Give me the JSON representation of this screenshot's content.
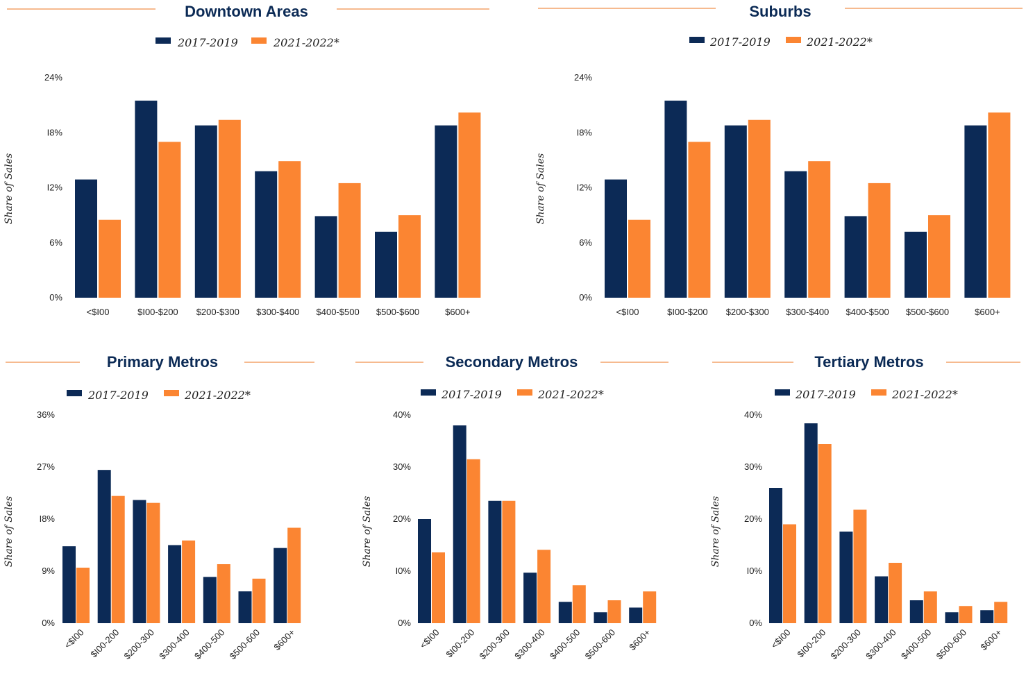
{
  "colors": {
    "series1": "#0c2a56",
    "series2": "#fb8532",
    "rule": "#f4a46a",
    "title": "#0b2a55"
  },
  "chart_data": [
    {
      "type": "bar",
      "title": "Downtown Areas",
      "ylabel": "Share of Sales",
      "categories": [
        "<$I00",
        "$I00-$200",
        "$200-$300",
        "$300-$400",
        "$400-$500",
        "$500-$600",
        "$600+"
      ],
      "series": [
        {
          "name": "2017-2019",
          "values": [
            12.9,
            21.5,
            18.8,
            13.8,
            8.9,
            7.2,
            18.8
          ]
        },
        {
          "name": "2021-2022*",
          "values": [
            8.5,
            17.0,
            19.4,
            14.9,
            12.5,
            9.0,
            20.2
          ]
        }
      ],
      "ylim": [
        0,
        24
      ],
      "yticks": [
        0,
        6,
        12,
        18,
        24
      ],
      "ytick_labels": [
        "0%",
        "6%",
        "I2%",
        "I8%",
        "24%"
      ],
      "grid": false,
      "legend": "top-center"
    },
    {
      "type": "bar",
      "title": "Suburbs",
      "ylabel": "Share of Sales",
      "categories": [
        "<$I00",
        "$I00-$200",
        "$200-$300",
        "$300-$400",
        "$400-$500",
        "$500-$600",
        "$600+"
      ],
      "series": [
        {
          "name": "2017-2019",
          "values": [
            12.9,
            21.5,
            18.8,
            13.8,
            8.9,
            7.2,
            18.8
          ]
        },
        {
          "name": "2021-2022*",
          "values": [
            8.5,
            17.0,
            19.4,
            14.9,
            12.5,
            9.0,
            20.2
          ]
        }
      ],
      "ylim": [
        0,
        24
      ],
      "yticks": [
        0,
        6,
        12,
        18,
        24
      ],
      "ytick_labels": [
        "0%",
        "6%",
        "I2%",
        "I8%",
        "24%"
      ],
      "grid": false,
      "legend": "top-center"
    },
    {
      "type": "bar",
      "title": "Primary Metros",
      "ylabel": "Share of Sales",
      "categories": [
        "<$I00",
        "$I00-200",
        "$200-300",
        "$300-400",
        "$400-500",
        "$500-600",
        "$600+"
      ],
      "series": [
        {
          "name": "2017-2019",
          "values": [
            13.3,
            26.5,
            21.3,
            13.5,
            8.0,
            5.5,
            13.0
          ]
        },
        {
          "name": "2021-2022*",
          "values": [
            9.6,
            22.0,
            20.8,
            14.3,
            10.2,
            7.7,
            16.5
          ]
        }
      ],
      "ylim": [
        0,
        36
      ],
      "yticks": [
        0,
        9,
        18,
        27,
        36
      ],
      "ytick_labels": [
        "0%",
        "9%",
        "I8%",
        "27%",
        "36%"
      ],
      "grid": false,
      "legend": "top-center"
    },
    {
      "type": "bar",
      "title": "Secondary Metros",
      "ylabel": "Share of Sales",
      "categories": [
        "<$I00",
        "$I00-200",
        "$200-300",
        "$300-400",
        "$400-500",
        "$500-600",
        "$600+"
      ],
      "series": [
        {
          "name": "2017-2019",
          "values": [
            20.0,
            38.0,
            23.5,
            9.7,
            4.1,
            2.1,
            3.0
          ]
        },
        {
          "name": "2021-2022*",
          "values": [
            13.6,
            31.5,
            23.5,
            14.1,
            7.3,
            4.4,
            6.1
          ]
        }
      ],
      "ylim": [
        0,
        40
      ],
      "yticks": [
        0,
        10,
        20,
        30,
        40
      ],
      "ytick_labels": [
        "0%",
        "I0%",
        "20%",
        "30%",
        "40%"
      ],
      "grid": false,
      "legend": "top-center"
    },
    {
      "type": "bar",
      "title": "Tertiary Metros",
      "ylabel": "Share of Sales",
      "categories": [
        "<$I00",
        "$I00-200",
        "$200-300",
        "$300-400",
        "$400-500",
        "$500-600",
        "$600+"
      ],
      "series": [
        {
          "name": "2017-2019",
          "values": [
            26.0,
            38.4,
            17.6,
            9.0,
            4.4,
            2.1,
            2.5
          ]
        },
        {
          "name": "2021-2022*",
          "values": [
            19.0,
            34.4,
            21.8,
            11.6,
            6.1,
            3.3,
            4.1
          ]
        }
      ],
      "ylim": [
        0,
        40
      ],
      "yticks": [
        0,
        10,
        20,
        30,
        40
      ],
      "ytick_labels": [
        "0%",
        "I0%",
        "20%",
        "30%",
        "40%"
      ],
      "grid": false,
      "legend": "top-center"
    }
  ]
}
